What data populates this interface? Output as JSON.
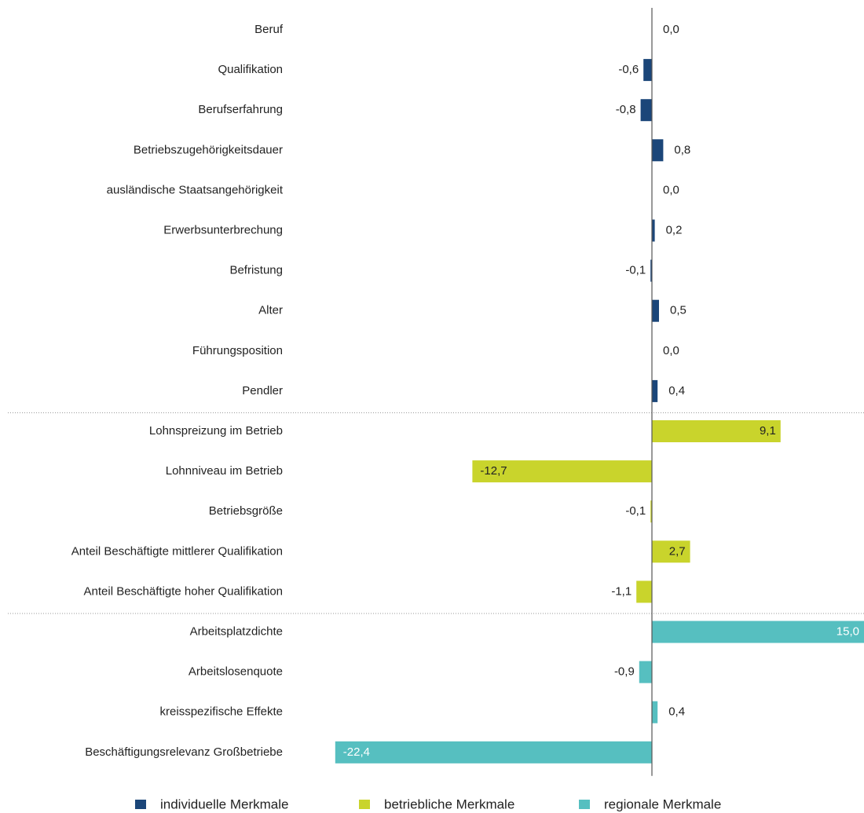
{
  "chart_data": {
    "type": "bar",
    "orientation": "horizontal",
    "categories": [
      "Beruf",
      "Qualifikation",
      "Berufserfahrung",
      "Betriebszugehörigkeitsdauer",
      "ausländische Staatsangehörigkeit",
      "Erwerbsunterbrechung",
      "Befristung",
      "Alter",
      "Führungsposition",
      "Pendler",
      "Lohnspreizung im Betrieb",
      "Lohnniveau im Betrieb",
      "Betriebsgröße",
      "Anteil Beschäftigte mittlerer Qualifikation",
      "Anteil Beschäftigte hoher Qualifikation",
      "Arbeitsplatzdichte",
      "Arbeitslosenquote",
      "kreisspezifische Effekte",
      "Beschäftigungsrelevanz Großbetriebe"
    ],
    "series": [
      {
        "name": "individuelle Merkmale",
        "color": "#1b4679",
        "values": [
          0.0,
          -0.6,
          -0.8,
          0.8,
          0.0,
          0.2,
          -0.1,
          0.5,
          0.0,
          0.4,
          null,
          null,
          null,
          null,
          null,
          null,
          null,
          null,
          null
        ],
        "value_labels": [
          "0,0",
          "-0,6",
          "-0,8",
          "0,8",
          "0,0",
          "0,2",
          "-0,1",
          "0,5",
          "0,0",
          "0,4",
          null,
          null,
          null,
          null,
          null,
          null,
          null,
          null,
          null
        ]
      },
      {
        "name": "betriebliche Merkmale",
        "color": "#c9d42c",
        "values": [
          null,
          null,
          null,
          null,
          null,
          null,
          null,
          null,
          null,
          null,
          9.1,
          -12.7,
          -0.1,
          2.7,
          -1.1,
          null,
          null,
          null,
          null
        ],
        "value_labels": [
          null,
          null,
          null,
          null,
          null,
          null,
          null,
          null,
          null,
          null,
          "9,1",
          "-12,7",
          "-0,1",
          "2,7",
          "-1,1",
          null,
          null,
          null,
          null
        ]
      },
      {
        "name": "regionale Merkmale",
        "color": "#56bfc0",
        "values": [
          null,
          null,
          null,
          null,
          null,
          null,
          null,
          null,
          null,
          null,
          null,
          null,
          null,
          null,
          null,
          15.0,
          -0.9,
          0.4,
          -22.4
        ],
        "value_labels": [
          null,
          null,
          null,
          null,
          null,
          null,
          null,
          null,
          null,
          null,
          null,
          null,
          null,
          null,
          null,
          "15,0",
          "-0,9",
          "0,4",
          "-22,4"
        ]
      }
    ],
    "xlim": [
      -25,
      15
    ]
  }
}
